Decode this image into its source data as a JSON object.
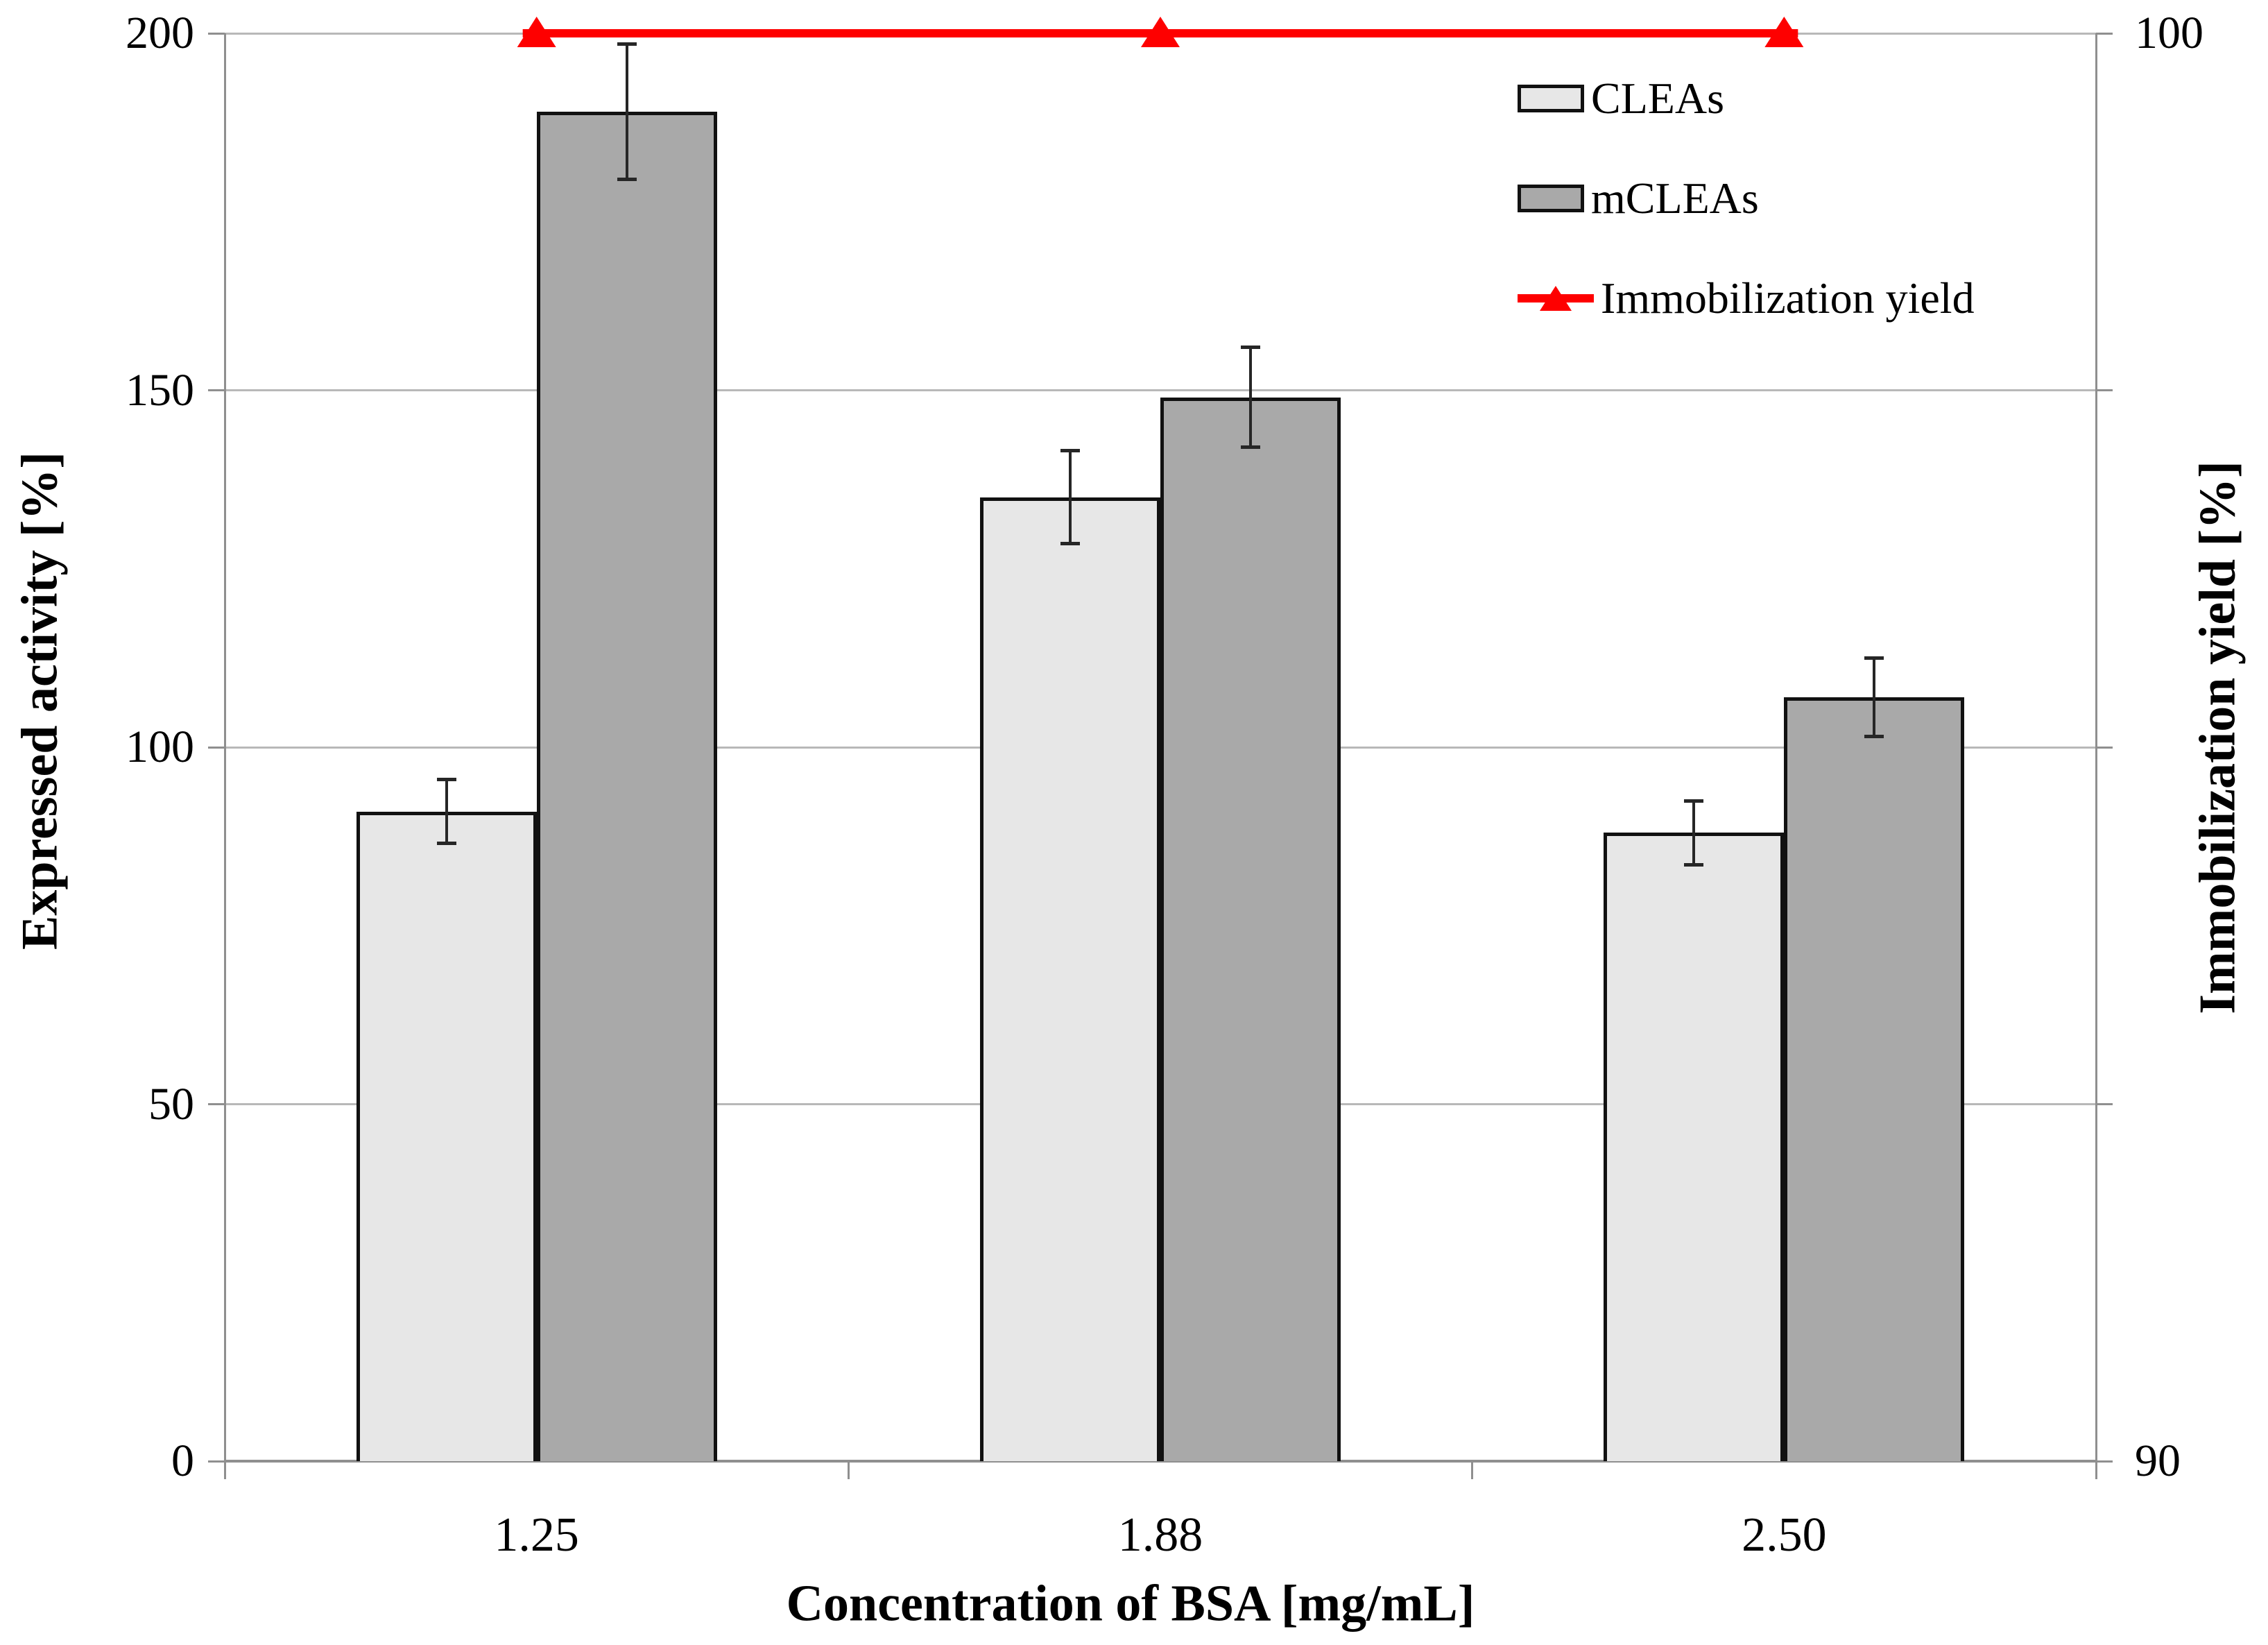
{
  "figure": {
    "description": "Combination column and line chart",
    "background": "#ffffff"
  },
  "chart_data": {
    "type": "bar",
    "categories": [
      "1.25",
      "1.88",
      "2.50"
    ],
    "series": [
      {
        "name": "CLEAs",
        "chart_type": "bar",
        "axis": "left",
        "values": [
          91,
          135,
          88
        ],
        "errors": [
          4.5,
          6.5,
          4.5
        ],
        "fill": "#e7e7e7"
      },
      {
        "name": "mCLEAs",
        "chart_type": "bar",
        "axis": "left",
        "values": [
          189,
          149,
          107
        ],
        "errors": [
          9.5,
          7,
          5.5
        ],
        "fill": "#a9a9a9"
      },
      {
        "name": "Immobilization yield",
        "chart_type": "line",
        "axis": "right",
        "values": [
          100,
          100,
          100
        ],
        "color": "#fe0000",
        "marker": "triangle-up"
      }
    ],
    "left_axis": {
      "title": "Expressed activity [%]",
      "min": 0,
      "max": 200,
      "ticks": [
        "0",
        "50",
        "100",
        "150",
        "200"
      ]
    },
    "right_axis": {
      "title": "Immobilization yield [%]",
      "min": 90,
      "max": 100,
      "tick_labels": [
        "90",
        "100"
      ]
    },
    "x_axis": {
      "title": "Concentration of BSA [mg/mL]"
    },
    "legend": {
      "position": "inside-top-right",
      "entries": [
        "CLEAs",
        "mCLEAs",
        "Immobilization yield"
      ]
    },
    "grid": true,
    "style_colors": {
      "gridline": "#b8b8b8",
      "axis_line": "#8f8f8f",
      "bar_border": "#111111",
      "error_bar": "#262626"
    }
  }
}
